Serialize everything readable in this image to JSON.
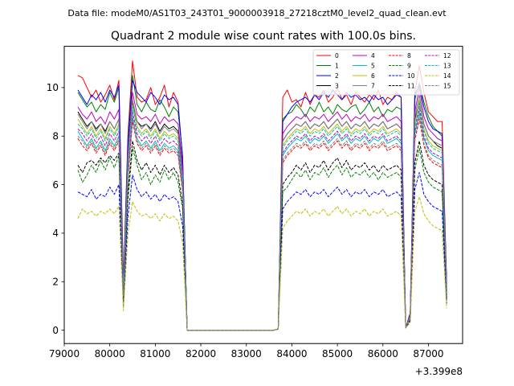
{
  "header": {
    "suptitle": "Data file: modeM0/AS1T03_243T01_9000003918_27218cztM0_level2_quad_clean.evt"
  },
  "chart_data": {
    "type": "line",
    "title": "Quadrant 2 module wise count rates with 100.0s bins.",
    "xlabel": "",
    "ylabel": "",
    "x_offset_label": "+3.399e8",
    "xlim": [
      79000,
      87750
    ],
    "ylim": [
      -0.55,
      11.7
    ],
    "xticks": [
      79000,
      80000,
      81000,
      82000,
      83000,
      84000,
      85000,
      86000,
      87000
    ],
    "xtick_labels": [
      "79000",
      "80000",
      "81000",
      "82000",
      "83000",
      "84000",
      "85000",
      "86000",
      "87000"
    ],
    "yticks": [
      0,
      2,
      4,
      6,
      8,
      10
    ],
    "ytick_labels": [
      "0",
      "2",
      "4",
      "6",
      "8",
      "10"
    ],
    "legend_position": "top-right",
    "segments": [
      {
        "name": "pass-1",
        "x_start": 79300,
        "x_step": 100,
        "count": 24
      },
      {
        "name": "gap",
        "x_start": 81700,
        "x_step": 100,
        "count": 20
      },
      {
        "name": "pass-2",
        "x_start": 83700,
        "x_step": 100,
        "count": 28
      },
      {
        "name": "pass-3",
        "x_start": 86500,
        "x_step": 100,
        "count": 10
      }
    ],
    "series": [
      {
        "name": "0",
        "color": "#ff0000",
        "dash": "solid",
        "pass1": [
          10.5,
          10.4,
          10.0,
          9.6,
          9.9,
          9.4,
          9.7,
          10.1,
          9.5,
          10.3,
          2.1,
          8.1,
          11.1,
          9.6,
          9.4,
          9.5,
          10.0,
          9.3,
          9.6,
          10.1,
          9.2,
          9.8,
          9.4,
          7.0
        ],
        "pass2": [
          0.05,
          9.6,
          9.9,
          9.4,
          9.5,
          9.2,
          9.8,
          9.3,
          9.7,
          9.6,
          9.9,
          9.4,
          9.6,
          10.0,
          9.5,
          9.7,
          9.3,
          9.8,
          9.6,
          9.4,
          9.7,
          9.5,
          9.9,
          9.3,
          9.6,
          9.5,
          9.8,
          9.6
        ],
        "pass3": [
          0.1,
          0.7,
          9.8,
          10.9,
          9.8,
          9.0,
          8.8,
          8.6,
          8.6,
          2.0
        ]
      },
      {
        "name": "1",
        "color": "#008000",
        "dash": "solid",
        "pass1": [
          9.8,
          9.5,
          9.2,
          9.4,
          9.0,
          9.3,
          9.1,
          9.8,
          9.4,
          10.0,
          1.9,
          7.9,
          10.5,
          9.3,
          9.0,
          9.4,
          9.1,
          9.0,
          9.5,
          9.2,
          8.8,
          9.2,
          9.0,
          7.2
        ],
        "pass2": [
          0.05,
          8.7,
          8.9,
          9.0,
          9.3,
          9.1,
          8.8,
          9.2,
          9.0,
          9.4,
          9.0,
          9.2,
          8.9,
          9.3,
          9.1,
          9.0,
          9.2,
          9.3,
          8.9,
          9.1,
          9.4,
          9.0,
          9.2,
          8.8,
          9.1,
          9.0,
          9.2,
          9.1
        ],
        "pass3": [
          0.1,
          0.6,
          9.5,
          10.2,
          9.4,
          8.8,
          8.4,
          8.2,
          8.0,
          1.8
        ]
      },
      {
        "name": "2",
        "color": "#0000ff",
        "dash": "solid",
        "pass1": [
          9.9,
          9.6,
          9.3,
          9.7,
          9.5,
          9.8,
          9.4,
          9.9,
          9.6,
          10.1,
          1.8,
          7.7,
          10.3,
          9.8,
          9.6,
          9.4,
          9.8,
          9.6,
          9.3,
          9.7,
          9.5,
          9.6,
          9.3,
          7.1
        ],
        "pass2": [
          0.05,
          8.6,
          8.9,
          9.2,
          9.4,
          9.5,
          9.6,
          9.4,
          9.7,
          9.5,
          9.8,
          9.6,
          9.9,
          9.7,
          9.5,
          9.8,
          9.6,
          9.7,
          9.5,
          9.6,
          9.4,
          9.7,
          9.5,
          9.6,
          9.3,
          9.5,
          9.7,
          9.6
        ],
        "pass3": [
          0.1,
          0.7,
          9.7,
          10.1,
          9.2,
          8.6,
          8.3,
          8.2,
          8.1,
          1.9
        ]
      },
      {
        "name": "3",
        "color": "#000000",
        "dash": "solid",
        "pass1": [
          9.0,
          8.7,
          8.4,
          8.6,
          8.3,
          8.5,
          8.2,
          8.6,
          8.3,
          8.7,
          1.6,
          7.0,
          9.4,
          8.6,
          8.4,
          8.5,
          8.3,
          8.6,
          8.2,
          8.5,
          8.3,
          8.4,
          8.2,
          6.4
        ],
        "pass2": [
          0.05,
          7.8,
          8.1,
          8.3,
          8.5,
          8.4,
          8.6,
          8.3,
          8.5,
          8.4,
          8.6,
          8.3,
          8.5,
          8.7,
          8.4,
          8.6,
          8.3,
          8.5,
          8.4,
          8.6,
          8.3,
          8.5,
          8.4,
          8.6,
          8.3,
          8.4,
          8.5,
          8.3
        ],
        "pass3": [
          0.1,
          0.6,
          8.7,
          9.4,
          8.5,
          8.0,
          7.8,
          7.6,
          7.5,
          1.6
        ]
      },
      {
        "name": "4",
        "color": "#bf00bf",
        "dash": "solid",
        "pass1": [
          9.2,
          8.9,
          8.7,
          9.0,
          8.6,
          8.8,
          8.5,
          9.0,
          8.7,
          9.1,
          1.7,
          7.3,
          9.8,
          8.9,
          8.7,
          8.8,
          8.6,
          8.9,
          8.5,
          8.8,
          8.6,
          8.7,
          8.5,
          6.7
        ],
        "pass2": [
          0.05,
          8.1,
          8.4,
          8.6,
          8.8,
          8.7,
          8.9,
          8.6,
          8.8,
          8.7,
          8.9,
          8.6,
          8.8,
          9.0,
          8.7,
          8.9,
          8.6,
          8.8,
          8.7,
          8.9,
          8.6,
          8.8,
          8.7,
          8.9,
          8.6,
          8.7,
          8.8,
          8.6
        ],
        "pass3": [
          0.1,
          0.6,
          9.0,
          10.0,
          8.8,
          8.3,
          8.1,
          7.9,
          7.8,
          1.7
        ]
      },
      {
        "name": "5",
        "color": "#00bfbf",
        "dash": "solid",
        "pass1": [
          8.2,
          7.9,
          7.6,
          7.9,
          7.5,
          7.8,
          7.4,
          7.9,
          7.6,
          8.0,
          1.4,
          6.5,
          8.8,
          7.9,
          7.6,
          7.8,
          7.5,
          7.8,
          7.4,
          7.7,
          7.5,
          7.6,
          7.4,
          5.9
        ],
        "pass2": [
          0.05,
          7.2,
          7.5,
          7.7,
          7.9,
          7.8,
          8.0,
          7.7,
          7.9,
          7.8,
          8.0,
          7.7,
          7.9,
          8.1,
          7.8,
          8.0,
          7.7,
          7.9,
          7.8,
          8.0,
          7.7,
          7.9,
          7.8,
          8.0,
          7.7,
          7.8,
          7.9,
          7.7
        ],
        "pass3": [
          0.1,
          0.5,
          8.1,
          9.0,
          7.9,
          7.4,
          7.2,
          7.1,
          7.0,
          1.5
        ]
      },
      {
        "name": "6",
        "color": "#bfbf00",
        "dash": "solid",
        "pass1": [
          8.7,
          8.4,
          8.1,
          8.4,
          8.0,
          8.3,
          7.9,
          8.4,
          8.1,
          8.5,
          1.5,
          6.9,
          9.3,
          8.4,
          8.1,
          8.3,
          8.0,
          8.3,
          7.9,
          8.2,
          8.0,
          8.1,
          7.9,
          6.2
        ],
        "pass2": [
          0.05,
          7.6,
          7.9,
          8.1,
          8.3,
          8.2,
          8.4,
          8.1,
          8.3,
          8.2,
          8.4,
          8.1,
          8.3,
          8.5,
          8.2,
          8.4,
          8.1,
          8.3,
          8.2,
          8.4,
          8.1,
          8.3,
          8.2,
          8.4,
          8.1,
          8.2,
          8.3,
          8.1
        ],
        "pass3": [
          0.1,
          0.5,
          8.5,
          9.5,
          8.3,
          7.8,
          7.6,
          7.5,
          7.4,
          1.6
        ]
      },
      {
        "name": "7",
        "color": "#808080",
        "dash": "solid",
        "pass1": [
          8.9,
          8.6,
          8.3,
          8.6,
          8.2,
          8.5,
          8.1,
          8.6,
          8.3,
          8.7,
          1.6,
          7.1,
          9.5,
          8.6,
          8.3,
          8.5,
          8.2,
          8.5,
          8.1,
          8.4,
          8.2,
          8.3,
          8.1,
          6.3
        ],
        "pass2": [
          0.05,
          7.8,
          8.1,
          8.3,
          8.5,
          8.4,
          8.6,
          8.3,
          8.5,
          8.4,
          8.6,
          8.3,
          8.5,
          8.7,
          8.4,
          8.6,
          8.3,
          8.5,
          8.4,
          8.6,
          8.3,
          8.5,
          8.4,
          8.6,
          8.3,
          8.4,
          8.5,
          8.3
        ],
        "pass3": [
          0.1,
          0.6,
          8.8,
          9.7,
          8.5,
          8.0,
          7.8,
          7.7,
          7.6,
          1.6
        ]
      },
      {
        "name": "8",
        "color": "#ff0000",
        "dash": "dashed",
        "pass1": [
          7.9,
          7.6,
          7.4,
          7.7,
          7.3,
          7.6,
          7.2,
          7.7,
          7.4,
          7.8,
          1.4,
          6.3,
          8.6,
          7.7,
          7.4,
          7.6,
          7.3,
          7.6,
          7.2,
          7.5,
          7.3,
          7.4,
          7.2,
          5.7
        ],
        "pass2": [
          0.05,
          6.9,
          7.2,
          7.4,
          7.6,
          7.5,
          7.7,
          7.4,
          7.6,
          7.5,
          7.7,
          7.4,
          7.6,
          7.8,
          7.5,
          7.7,
          7.4,
          7.6,
          7.5,
          7.7,
          7.4,
          7.6,
          7.5,
          7.7,
          7.4,
          7.5,
          7.6,
          7.4
        ],
        "pass3": [
          0.1,
          0.5,
          7.8,
          8.7,
          7.6,
          7.1,
          6.9,
          6.8,
          6.7,
          1.4
        ]
      },
      {
        "name": "9",
        "color": "#008000",
        "dash": "dashed",
        "pass1": [
          6.6,
          6.1,
          6.4,
          6.8,
          6.5,
          7.0,
          6.6,
          7.1,
          6.7,
          7.2,
          1.2,
          5.4,
          7.5,
          6.8,
          6.2,
          6.5,
          6.0,
          6.4,
          6.1,
          6.6,
          6.2,
          6.5,
          6.1,
          5.0
        ],
        "pass2": [
          0.05,
          5.7,
          5.9,
          6.2,
          6.5,
          6.3,
          6.6,
          6.2,
          6.5,
          6.4,
          6.7,
          6.3,
          6.6,
          6.8,
          6.4,
          6.7,
          6.3,
          6.5,
          6.4,
          6.6,
          6.3,
          6.5,
          6.2,
          6.5,
          6.3,
          6.4,
          6.5,
          6.3
        ],
        "pass3": [
          0.1,
          0.4,
          6.6,
          7.5,
          6.5,
          6.1,
          5.9,
          5.8,
          5.7,
          1.2
        ]
      },
      {
        "name": "10",
        "color": "#0000ff",
        "dash": "dashed",
        "pass1": [
          5.7,
          5.6,
          5.5,
          5.8,
          5.4,
          5.6,
          5.5,
          5.9,
          5.6,
          6.0,
          1.0,
          4.7,
          6.4,
          5.8,
          5.5,
          5.7,
          5.4,
          5.6,
          5.3,
          5.6,
          5.4,
          5.5,
          5.3,
          4.3
        ],
        "pass2": [
          0.05,
          5.0,
          5.3,
          5.5,
          5.7,
          5.6,
          5.8,
          5.5,
          5.7,
          5.6,
          5.8,
          5.5,
          5.7,
          5.9,
          5.6,
          5.8,
          5.5,
          5.7,
          5.6,
          5.8,
          5.5,
          5.7,
          5.6,
          5.8,
          5.5,
          5.6,
          5.7,
          5.5
        ],
        "pass3": [
          0.1,
          0.4,
          5.8,
          6.5,
          5.6,
          5.3,
          5.1,
          5.0,
          4.9,
          1.1
        ]
      },
      {
        "name": "11",
        "color": "#000000",
        "dash": "dashed",
        "pass1": [
          6.8,
          6.5,
          6.9,
          7.0,
          6.8,
          7.1,
          6.9,
          7.2,
          7.0,
          7.3,
          1.3,
          5.7,
          7.8,
          7.0,
          6.6,
          6.9,
          6.5,
          6.8,
          6.4,
          6.8,
          6.5,
          6.7,
          6.4,
          5.2
        ],
        "pass2": [
          0.05,
          6.0,
          6.3,
          6.5,
          6.8,
          6.6,
          6.9,
          6.5,
          6.8,
          6.7,
          7.0,
          6.6,
          6.9,
          7.1,
          6.7,
          7.0,
          6.6,
          6.8,
          6.7,
          6.9,
          6.6,
          6.8,
          6.5,
          6.8,
          6.6,
          6.7,
          6.8,
          6.6
        ],
        "pass3": [
          0.1,
          0.4,
          6.9,
          7.8,
          6.8,
          6.4,
          6.2,
          6.1,
          6.0,
          1.3
        ]
      },
      {
        "name": "12",
        "color": "#bf00bf",
        "dash": "dashed",
        "pass1": [
          8.3,
          8.1,
          7.8,
          8.1,
          7.7,
          8.0,
          7.6,
          8.1,
          7.8,
          8.2,
          1.5,
          6.6,
          9.0,
          8.1,
          7.8,
          8.0,
          7.7,
          8.0,
          7.6,
          7.9,
          7.7,
          7.8,
          7.6,
          6.0
        ],
        "pass2": [
          0.05,
          7.3,
          7.6,
          7.8,
          8.0,
          7.9,
          8.1,
          7.8,
          8.0,
          7.9,
          8.1,
          7.8,
          8.0,
          8.2,
          7.9,
          8.1,
          7.8,
          8.0,
          7.9,
          8.1,
          7.8,
          8.0,
          7.9,
          8.1,
          7.8,
          7.9,
          8.0,
          7.8
        ],
        "pass3": [
          0.1,
          0.5,
          8.2,
          9.2,
          8.0,
          7.5,
          7.3,
          7.2,
          7.1,
          1.5
        ]
      },
      {
        "name": "13",
        "color": "#00bfbf",
        "dash": "dashed",
        "pass1": [
          8.5,
          8.3,
          8.0,
          8.3,
          7.9,
          8.2,
          7.8,
          8.3,
          8.0,
          8.4,
          1.5,
          6.8,
          9.2,
          8.3,
          8.0,
          8.2,
          7.9,
          8.2,
          7.8,
          8.1,
          7.9,
          8.0,
          7.8,
          6.1
        ],
        "pass2": [
          0.05,
          7.5,
          7.8,
          8.0,
          8.2,
          8.1,
          8.3,
          8.0,
          8.2,
          8.1,
          8.3,
          8.0,
          8.2,
          8.4,
          8.1,
          8.3,
          8.0,
          8.2,
          8.1,
          8.3,
          8.0,
          8.2,
          8.1,
          8.3,
          8.0,
          8.1,
          8.2,
          8.0
        ],
        "pass3": [
          0.1,
          0.5,
          8.4,
          9.4,
          8.2,
          7.7,
          7.5,
          7.4,
          7.3,
          1.5
        ]
      },
      {
        "name": "14",
        "color": "#bfbf00",
        "dash": "dashed",
        "pass1": [
          4.6,
          5.0,
          4.8,
          4.9,
          4.7,
          4.9,
          4.8,
          5.0,
          4.8,
          5.1,
          0.8,
          4.0,
          5.3,
          4.9,
          4.7,
          4.8,
          4.6,
          4.8,
          4.5,
          4.8,
          4.6,
          4.7,
          4.5,
          3.6
        ],
        "pass2": [
          0.05,
          4.2,
          4.5,
          4.7,
          4.9,
          4.8,
          5.0,
          4.7,
          4.9,
          4.8,
          5.0,
          4.7,
          4.9,
          5.1,
          4.8,
          5.0,
          4.7,
          4.9,
          4.8,
          5.0,
          4.7,
          4.9,
          4.8,
          5.0,
          4.7,
          4.8,
          4.9,
          4.7
        ],
        "pass3": [
          0.1,
          0.3,
          4.9,
          5.5,
          4.8,
          4.5,
          4.3,
          4.2,
          4.1,
          0.9
        ]
      },
      {
        "name": "15",
        "color": "#808080",
        "dash": "dashed",
        "pass1": [
          8.0,
          7.8,
          7.5,
          7.8,
          7.4,
          7.7,
          7.3,
          7.8,
          7.5,
          7.9,
          1.4,
          6.4,
          8.7,
          7.8,
          7.5,
          7.7,
          7.4,
          7.7,
          7.3,
          7.6,
          7.4,
          7.5,
          7.3,
          5.8
        ],
        "pass2": [
          0.05,
          7.0,
          7.3,
          7.5,
          7.7,
          7.6,
          7.8,
          7.5,
          7.7,
          7.6,
          7.8,
          7.5,
          7.7,
          7.9,
          7.6,
          7.8,
          7.5,
          7.7,
          7.6,
          7.8,
          7.5,
          7.7,
          7.6,
          7.8,
          7.5,
          7.6,
          7.7,
          7.5
        ],
        "pass3": [
          0.1,
          0.5,
          7.9,
          8.9,
          7.7,
          7.2,
          7.0,
          6.9,
          6.8,
          1.4
        ]
      }
    ]
  }
}
